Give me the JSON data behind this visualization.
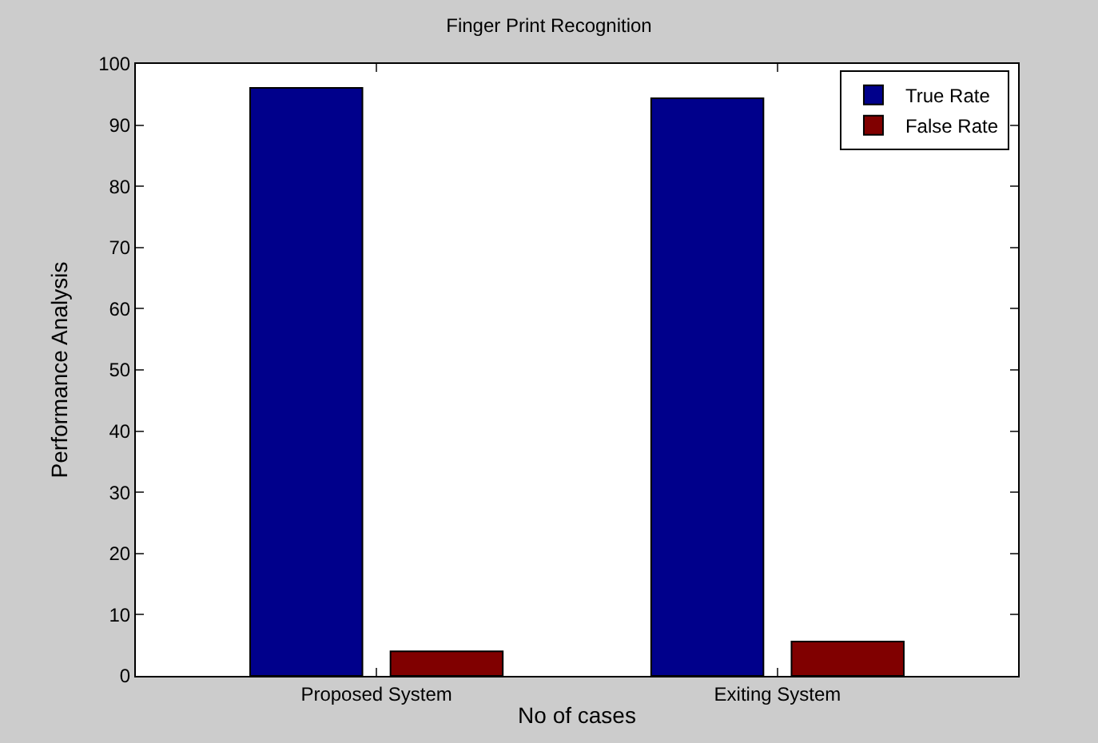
{
  "chart_data": {
    "type": "bar",
    "title": "Finger Print Recognition",
    "xlabel": "No of cases",
    "ylabel": "Performance Analysis",
    "categories": [
      "Proposed System",
      "Exiting System"
    ],
    "series": [
      {
        "name": "True Rate",
        "color": "#00008b",
        "values": [
          96.1,
          94.4
        ]
      },
      {
        "name": "False Rate",
        "color": "#800000",
        "values": [
          4.0,
          5.6
        ]
      }
    ],
    "ylim": [
      0,
      100
    ],
    "yticks": [
      0,
      10,
      20,
      30,
      40,
      50,
      60,
      70,
      80,
      90,
      100
    ],
    "legend": "top right"
  }
}
